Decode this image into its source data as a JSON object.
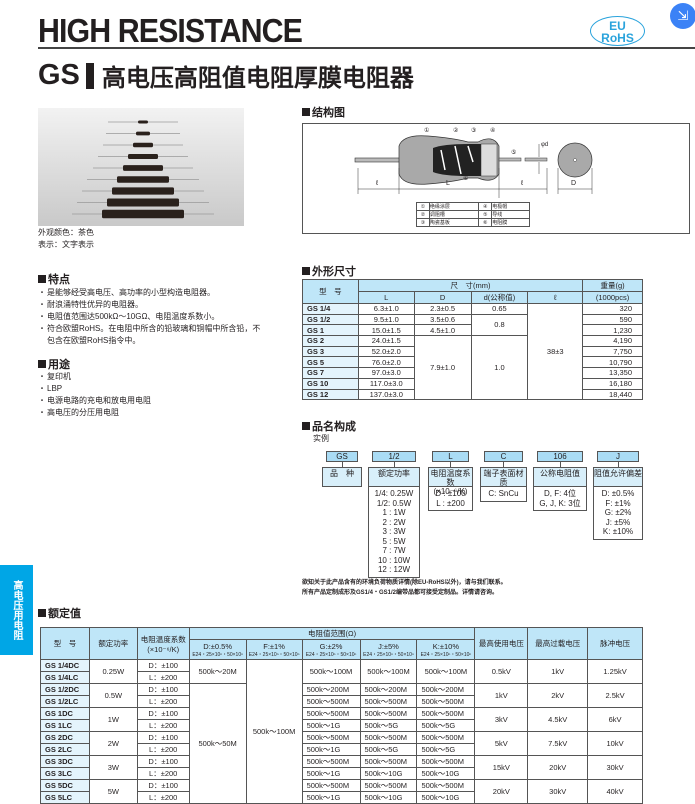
{
  "header": {
    "title": "HIGH RESISTANCE",
    "rohs_line1": "EU",
    "rohs_line2": "RoHS",
    "series": "GS",
    "subtitle": "高电压高阻值电阻厚膜电阻器"
  },
  "photo": {
    "color_label": "外观颜色：茶色",
    "marking_label": "表示：文字表示"
  },
  "features": {
    "heading": "特点",
    "items": [
      "是能够经受高电压、高功率的小型构造电阻器。",
      "耐浪涌特性优异的电阻器。",
      "电阻值范围达500kΩ～10GΩ、电阻温度系数小。",
      "符合欧盟RoHS。在电阻中所含的铅玻璃和铜帽中所含铅，不包含在欧盟RoHS指令中。"
    ]
  },
  "uses": {
    "heading": "用途",
    "items": [
      "复印机",
      "LBP",
      "电源电路的充电和放电用电阻",
      "高电压的分压用电阻"
    ]
  },
  "sidebar": {
    "label": "高电压用电阻"
  },
  "structure": {
    "heading": "结构图",
    "dims": {
      "L": "L",
      "D": "D",
      "l": "ℓ",
      "d": "φd"
    },
    "legend": [
      {
        "n": "①",
        "t": "绝缘涂层"
      },
      {
        "n": "④",
        "t": "电极帽"
      },
      {
        "n": "②",
        "t": "调阻槽"
      },
      {
        "n": "⑤",
        "t": "导线"
      },
      {
        "n": "③",
        "t": "陶瓷基板"
      },
      {
        "n": "⑥",
        "t": "电阻膜"
      }
    ],
    "markers": [
      "①",
      "②",
      "③",
      "④",
      "⑤",
      "⑥"
    ]
  },
  "dimensions": {
    "heading": "外形尺寸",
    "h_model": "型　号",
    "h_size": "尺　寸(mm)",
    "h_L": "L",
    "h_D": "D",
    "h_d": "d(公称值)",
    "h_l": "ℓ",
    "h_weight": "重量(g)",
    "h_weight2": "(1000pcs)",
    "d_065": "0.65",
    "d_08": "0.8",
    "d_10": "1.0",
    "D_big": "7.9±1.0",
    "l_all": "38±3",
    "rows": [
      {
        "m": "GS 1/4",
        "L": "6.3±1.0",
        "D": "2.3±0.5",
        "w": "320"
      },
      {
        "m": "GS 1/2",
        "L": "9.5±1.0",
        "D": "3.5±0.6",
        "w": "590"
      },
      {
        "m": "GS 1",
        "L": "15.0±1.5",
        "D": "4.5±1.0",
        "w": "1,230"
      },
      {
        "m": "GS 2",
        "L": "24.0±1.5",
        "w": "4,190"
      },
      {
        "m": "GS 3",
        "L": "52.0±2.0",
        "w": "7,750"
      },
      {
        "m": "GS 5",
        "L": "76.0±2.0",
        "w": "10,790"
      },
      {
        "m": "GS 7",
        "L": "97.0±3.0",
        "w": "13,350"
      },
      {
        "m": "GS 10",
        "L": "117.0±3.0",
        "w": "16,180"
      },
      {
        "m": "GS 12",
        "L": "137.0±3.0",
        "w": "18,440"
      }
    ]
  },
  "partnumber": {
    "heading": "品名构成",
    "example": "实例",
    "blocks": [
      {
        "code": "GS",
        "label": "品　种",
        "opts": []
      },
      {
        "code": "1/2",
        "label": "额定功率",
        "opts": [
          "1/4: 0.25W",
          "1/2: 0.5W",
          "1 : 1W",
          "2 : 2W",
          "3 : 3W",
          "5 : 5W",
          "7 : 7W",
          "10 : 10W",
          "12 : 12W"
        ]
      },
      {
        "code": "L",
        "label": "电阻温度系数",
        "label2": "(×10⁻⁶/K)",
        "opts": [
          "D : ±100",
          "L : ±200"
        ]
      },
      {
        "code": "C",
        "label": "端子表面材质",
        "opts": [
          "C: SnCu"
        ]
      },
      {
        "code": "106",
        "label": "公称电阻值",
        "opts": [
          "D, F: 4位",
          "G, J, K: 3位"
        ]
      },
      {
        "code": "J",
        "label": "阻值允许偏差",
        "opts": [
          "D: ±0.5%",
          "F: ±1%",
          "G: ±2%",
          "J: ±5%",
          "K: ±10%"
        ]
      }
    ],
    "note1": "欲知关于此产品含有的环境负荷物质详情(除EU-RoHS以外)，请与我们联系。",
    "note2": "所有产品定制成形及GS1/4・GS1/2编带品都可接受定制品。详情请咨询。"
  },
  "rating": {
    "heading": "额定值",
    "h_model": "型　号",
    "h_power": "额定功率",
    "h_tcr": "电阻温度系数",
    "h_tcr2": "(×10⁻⁶/K)",
    "h_range": "电阻值范围(Ω)",
    "h_tol": [
      "D:±0.5%",
      "F:±1%",
      "G:±2%",
      "J:±5%",
      "K:±10%"
    ],
    "h_series": [
      "E24・25×10ⁿ・50×10ⁿ",
      "E24・25×10ⁿ・50×10ⁿ",
      "E24・25×10ⁿ・50×10ⁿ",
      "E24・25×10ⁿ・50×10ⁿ",
      "E24・25×10ⁿ・50×10ⁿ"
    ],
    "h_maxv": "最高使用电压",
    "h_overv": "最高过载电压",
    "h_pulse": "脉冲电压",
    "tcr_d": "D：±100",
    "tcr_l": "L：±200",
    "d_a": "500k～20M",
    "d_b": "500k～50M",
    "f_all": "500k～100M",
    "groups": [
      {
        "d": "GS 1/4DC",
        "l": "GS 1/4LC",
        "p": "0.25W",
        "g": [
          "500k～100M"
        ],
        "j": [
          "500k～100M"
        ],
        "k": [
          "500k～100M"
        ],
        "v": "0.5kV",
        "o": "1kV",
        "u": "1.25kV"
      },
      {
        "d": "GS 1/2DC",
        "l": "GS 1/2LC",
        "p": "0.5W",
        "g": [
          "500k～200M",
          "500k～500M"
        ],
        "j": [
          "500k～200M",
          "500k～500M"
        ],
        "k": [
          "500k～200M",
          "500k～500M"
        ],
        "v": "1kV",
        "o": "2kV",
        "u": "2.5kV"
      },
      {
        "d": "GS 1DC",
        "l": "GS 1LC",
        "p": "1W",
        "g": [
          "500k～500M",
          "500k～1G"
        ],
        "j": [
          "500k～500M",
          "500k～5G"
        ],
        "k": [
          "500k～500M",
          "500k～5G"
        ],
        "v": "3kV",
        "o": "4.5kV",
        "u": "6kV"
      },
      {
        "d": "GS 2DC",
        "l": "GS 2LC",
        "p": "2W",
        "g": [
          "500k～500M",
          "500k～1G"
        ],
        "j": [
          "500k～500M",
          "500k～5G"
        ],
        "k": [
          "500k～500M",
          "500k～5G"
        ],
        "v": "5kV",
        "o": "7.5kV",
        "u": "10kV"
      },
      {
        "d": "GS 3DC",
        "l": "GS 3LC",
        "p": "3W",
        "g": [
          "500k～500M",
          "500k～1G"
        ],
        "j": [
          "500k～500M",
          "500k～10G"
        ],
        "k": [
          "500k～500M",
          "500k～10G"
        ],
        "v": "15kV",
        "o": "20kV",
        "u": "30kV"
      },
      {
        "d": "GS 5DC",
        "l": "GS 5LC",
        "p": "5W",
        "g": [
          "500k～500M",
          "500k～1G"
        ],
        "j": [
          "500k～500M",
          "500k～10G"
        ],
        "k": [
          "500k～500M",
          "500k～10G"
        ],
        "v": "20kV",
        "o": "30kV",
        "u": "40kV"
      }
    ]
  }
}
